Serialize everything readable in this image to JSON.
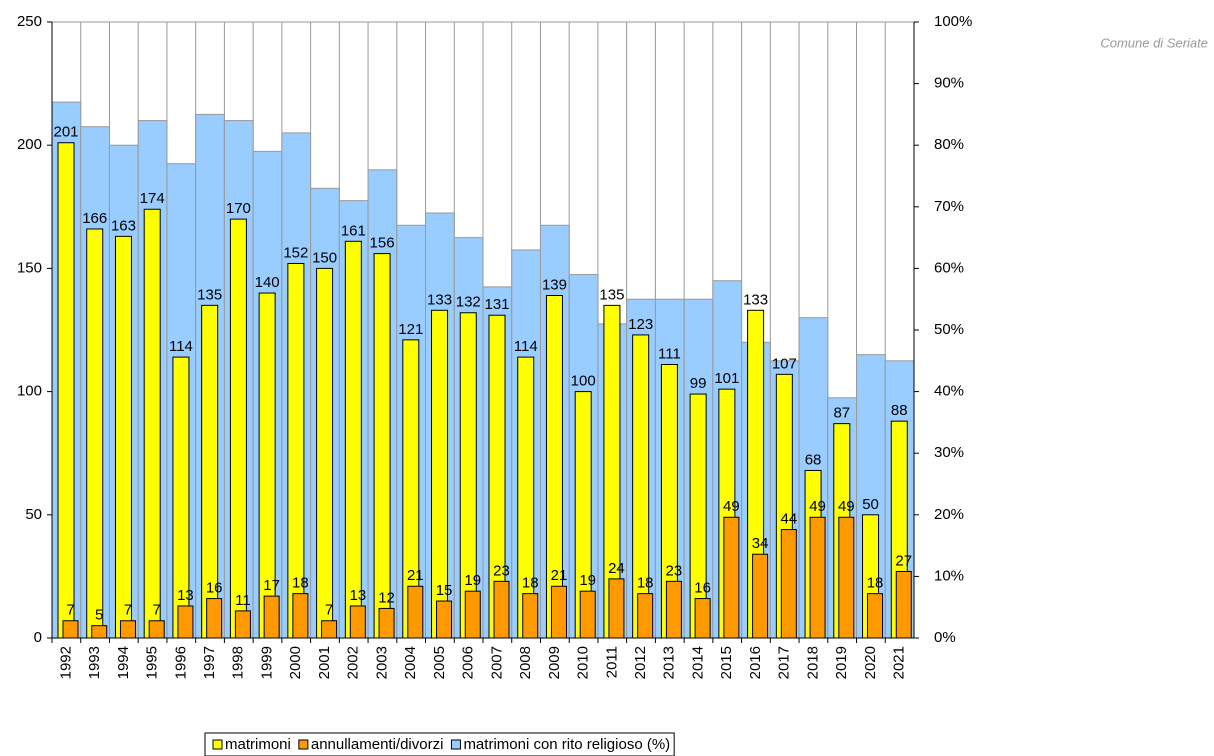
{
  "chart_data": {
    "type": "bar",
    "watermark": "Comune di Seriate",
    "categories": [
      "1992",
      "1993",
      "1994",
      "1995",
      "1996",
      "1997",
      "1998",
      "1999",
      "2000",
      "2001",
      "2002",
      "2003",
      "2004",
      "2005",
      "2006",
      "2007",
      "2008",
      "2009",
      "2010",
      "2011",
      "2012",
      "2013",
      "2014",
      "2015",
      "2016",
      "2017",
      "2018",
      "2019",
      "2020",
      "2021"
    ],
    "series": [
      {
        "name": "matrimoni con rito religioso (%)",
        "color": "#99ccff",
        "axis": "y2",
        "values": [
          87,
          83,
          80,
          84,
          77,
          85,
          84,
          79,
          82,
          73,
          71,
          76,
          67,
          69,
          65,
          57,
          63,
          67,
          59,
          51,
          55,
          55,
          55,
          58,
          48,
          45,
          52,
          39,
          46,
          45
        ]
      },
      {
        "name": "matrimoni",
        "color": "#ffff00",
        "values": [
          201,
          166,
          163,
          174,
          114,
          135,
          170,
          140,
          152,
          150,
          161,
          156,
          121,
          133,
          132,
          131,
          114,
          139,
          100,
          135,
          123,
          111,
          99,
          101,
          133,
          107,
          68,
          87,
          50,
          88
        ]
      },
      {
        "name": "annullamenti/divorzi",
        "color": "#ff9900",
        "values": [
          7,
          5,
          7,
          7,
          13,
          16,
          11,
          17,
          18,
          7,
          13,
          12,
          21,
          15,
          19,
          23,
          18,
          21,
          19,
          24,
          18,
          23,
          16,
          49,
          34,
          44,
          49,
          49,
          18,
          27
        ]
      }
    ],
    "ylim": [
      0,
      250
    ],
    "yticks": [
      0,
      50,
      100,
      150,
      200,
      250
    ],
    "y2lim": [
      0,
      100
    ],
    "y2ticks": [
      {
        "value": 0,
        "label": "0%"
      },
      {
        "value": 10,
        "label": "10%"
      },
      {
        "value": 20,
        "label": "20%"
      },
      {
        "value": 30,
        "label": "30%"
      },
      {
        "value": 40,
        "label": "40%"
      },
      {
        "value": 50,
        "label": "50%"
      },
      {
        "value": 60,
        "label": "60%"
      },
      {
        "value": 70,
        "label": "70%"
      },
      {
        "value": 80,
        "label": "80%"
      },
      {
        "value": 90,
        "label": "90%"
      },
      {
        "value": 100,
        "label": "100%"
      }
    ],
    "legend": "bottom"
  }
}
